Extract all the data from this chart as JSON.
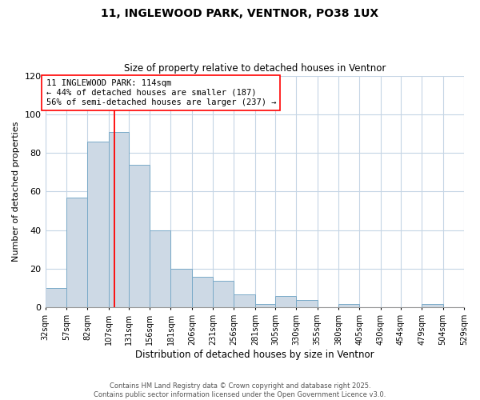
{
  "title": "11, INGLEWOOD PARK, VENTNOR, PO38 1UX",
  "subtitle": "Size of property relative to detached houses in Ventnor",
  "xlabel": "Distribution of detached houses by size in Ventnor",
  "ylabel": "Number of detached properties",
  "bar_color": "#cdd9e5",
  "bar_edge_color": "#7aaac8",
  "bins": [
    32,
    57,
    82,
    107,
    131,
    156,
    181,
    206,
    231,
    256,
    281,
    305,
    330,
    355,
    380,
    405,
    430,
    454,
    479,
    504,
    529
  ],
  "counts": [
    10,
    57,
    86,
    91,
    74,
    40,
    20,
    16,
    14,
    7,
    2,
    6,
    4,
    0,
    2,
    0,
    0,
    0,
    2,
    0
  ],
  "tick_labels": [
    "32sqm",
    "57sqm",
    "82sqm",
    "107sqm",
    "131sqm",
    "156sqm",
    "181sqm",
    "206sqm",
    "231sqm",
    "256sqm",
    "281sqm",
    "305sqm",
    "330sqm",
    "355sqm",
    "380sqm",
    "405sqm",
    "430sqm",
    "454sqm",
    "479sqm",
    "504sqm",
    "529sqm"
  ],
  "ylim": [
    0,
    120
  ],
  "yticks": [
    0,
    20,
    40,
    60,
    80,
    100,
    120
  ],
  "property_line_x": 114,
  "annotation_text": "11 INGLEWOOD PARK: 114sqm\n← 44% of detached houses are smaller (187)\n56% of semi-detached houses are larger (237) →",
  "footer_line1": "Contains HM Land Registry data © Crown copyright and database right 2025.",
  "footer_line2": "Contains public sector information licensed under the Open Government Licence v3.0.",
  "background_color": "#ffffff",
  "grid_color": "#c5d5e5"
}
